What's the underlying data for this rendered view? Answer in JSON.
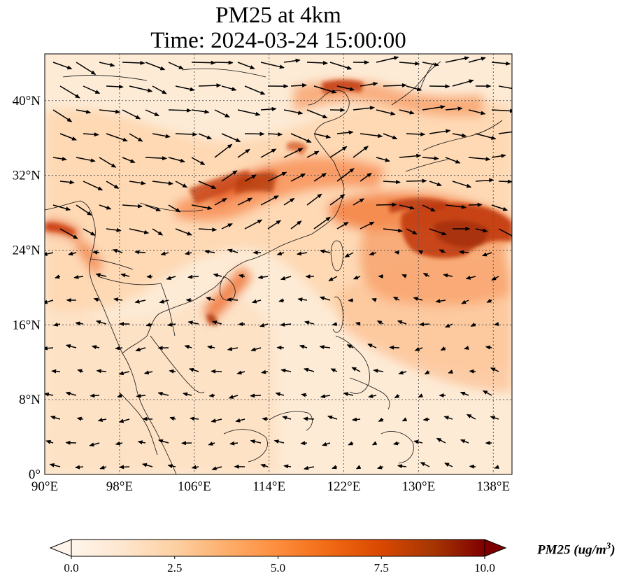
{
  "title": {
    "line1": "PM25 at 4km",
    "line2": "Time: 2024-03-24 15:00:00"
  },
  "map": {
    "extent": {
      "lon_min": 90,
      "lon_max": 140,
      "lat_min": 0,
      "lat_max": 45
    },
    "lat_ticks": [
      {
        "value": 0,
        "label": "0°"
      },
      {
        "value": 8,
        "label": "8°N"
      },
      {
        "value": 16,
        "label": "16°N"
      },
      {
        "value": 24,
        "label": "24°N"
      },
      {
        "value": 32,
        "label": "32°N"
      },
      {
        "value": 40,
        "label": "40°N"
      }
    ],
    "lon_ticks": [
      {
        "value": 90,
        "label": "90°E"
      },
      {
        "value": 98,
        "label": "98°E"
      },
      {
        "value": 106,
        "label": "106°E"
      },
      {
        "value": 114,
        "label": "114°E"
      },
      {
        "value": 122,
        "label": "122°E"
      },
      {
        "value": 130,
        "label": "130°E"
      },
      {
        "value": 138,
        "label": "138°E"
      }
    ],
    "gridlines": true
  },
  "colorbar": {
    "label_main": "PM25 (ug/m",
    "label_sup": "3",
    "label_end": ")",
    "min": 0,
    "max": 10,
    "ticks": [
      "0.0",
      "2.5",
      "5.0",
      "7.5",
      "10.0"
    ],
    "colors": [
      "#fff5eb",
      "#fee6ce",
      "#fdd0a2",
      "#fdae6b",
      "#fd8d3c",
      "#f16913",
      "#d94801",
      "#a63603",
      "#7f0000"
    ]
  }
}
